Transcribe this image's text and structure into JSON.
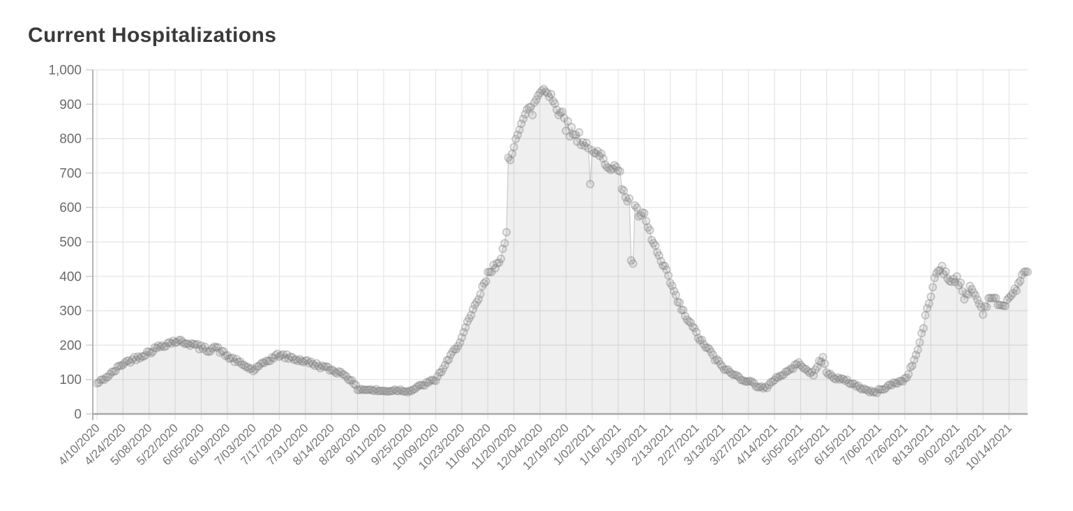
{
  "chart_data": {
    "type": "area",
    "title": "Current Hospitalizations",
    "xlabel": "",
    "ylabel": "",
    "ylim": [
      0,
      1000
    ],
    "grid": true,
    "legend": "none",
    "series_name": "Current Hospitalizations",
    "y_tick_labels": [
      "0",
      "100",
      "200",
      "300",
      "400",
      "500",
      "600",
      "700",
      "800",
      "900",
      "1,000"
    ],
    "y_tick_values": [
      0,
      100,
      200,
      300,
      400,
      500,
      600,
      700,
      800,
      900,
      1000
    ],
    "x_tick_labels": [
      "4/10/2020",
      "4/24/2020",
      "5/08/2020",
      "5/22/2020",
      "6/05/2020",
      "6/19/2020",
      "7/03/2020",
      "7/17/2020",
      "7/31/2020",
      "8/14/2020",
      "8/28/2020",
      "9/11/2020",
      "9/25/2020",
      "10/09/2020",
      "10/23/2020",
      "11/06/2020",
      "11/20/2020",
      "12/04/2020",
      "12/19/2020",
      "1/02/2021",
      "1/16/2021",
      "1/30/2021",
      "2/13/2021",
      "2/27/2021",
      "3/13/2021",
      "3/27/2021",
      "4/14/2021",
      "5/05/2021",
      "5/25/2021",
      "6/15/2021",
      "7/06/2021",
      "7/26/2021",
      "8/13/2021",
      "9/02/2021",
      "9/23/2021",
      "10/14/2021"
    ],
    "points_per_label": 14,
    "total_points": 501,
    "anchors": [
      [
        0,
        88
      ],
      [
        7,
        114
      ],
      [
        14,
        147
      ],
      [
        21,
        163
      ],
      [
        28,
        180
      ],
      [
        35,
        200
      ],
      [
        42,
        212
      ],
      [
        49,
        207
      ],
      [
        56,
        192
      ],
      [
        60,
        186
      ],
      [
        63,
        196
      ],
      [
        70,
        168
      ],
      [
        77,
        147
      ],
      [
        84,
        127
      ],
      [
        88,
        140
      ],
      [
        91,
        154
      ],
      [
        98,
        172
      ],
      [
        105,
        162
      ],
      [
        112,
        153
      ],
      [
        119,
        141
      ],
      [
        126,
        128
      ],
      [
        133,
        116
      ],
      [
        136,
        100
      ],
      [
        140,
        73
      ],
      [
        147,
        70
      ],
      [
        154,
        66
      ],
      [
        161,
        70
      ],
      [
        168,
        67
      ],
      [
        175,
        84
      ],
      [
        182,
        100
      ],
      [
        189,
        158
      ],
      [
        196,
        222
      ],
      [
        203,
        310
      ],
      [
        210,
        402
      ],
      [
        214,
        432
      ],
      [
        217,
        462
      ],
      [
        219,
        490
      ],
      [
        220,
        515
      ],
      [
        221,
        730
      ],
      [
        223,
        748
      ],
      [
        224,
        790
      ],
      [
        227,
        845
      ],
      [
        231,
        875
      ],
      [
        234,
        882
      ],
      [
        237,
        928
      ],
      [
        240,
        948
      ],
      [
        243,
        938
      ],
      [
        245,
        920
      ],
      [
        248,
        862
      ],
      [
        250,
        895
      ],
      [
        251,
        882
      ],
      [
        252,
        838
      ],
      [
        255,
        818
      ],
      [
        259,
        805
      ],
      [
        262,
        790
      ],
      [
        266,
        748
      ],
      [
        269,
        752
      ],
      [
        273,
        737
      ],
      [
        277,
        722
      ],
      [
        280,
        705
      ],
      [
        284,
        635
      ],
      [
        287,
        605
      ],
      [
        290,
        585
      ],
      [
        294,
        570
      ],
      [
        297,
        525
      ],
      [
        301,
        468
      ],
      [
        304,
        430
      ],
      [
        308,
        385
      ],
      [
        311,
        338
      ],
      [
        315,
        295
      ],
      [
        318,
        268
      ],
      [
        322,
        235
      ],
      [
        325,
        208
      ],
      [
        329,
        185
      ],
      [
        332,
        160
      ],
      [
        336,
        138
      ],
      [
        340,
        120
      ],
      [
        343,
        112
      ],
      [
        347,
        101
      ],
      [
        350,
        96
      ],
      [
        354,
        84
      ],
      [
        357,
        78
      ],
      [
        360,
        74
      ],
      [
        364,
        103
      ],
      [
        368,
        114
      ],
      [
        371,
        124
      ],
      [
        375,
        140
      ],
      [
        378,
        147
      ],
      [
        382,
        127
      ],
      [
        385,
        111
      ],
      [
        388,
        152
      ],
      [
        390,
        162
      ],
      [
        392,
        122
      ],
      [
        395,
        109
      ],
      [
        399,
        101
      ],
      [
        403,
        95
      ],
      [
        406,
        88
      ],
      [
        410,
        77
      ],
      [
        413,
        70
      ],
      [
        416,
        64
      ],
      [
        418,
        62
      ],
      [
        420,
        68
      ],
      [
        424,
        78
      ],
      [
        427,
        86
      ],
      [
        430,
        92
      ],
      [
        434,
        100
      ],
      [
        437,
        130
      ],
      [
        441,
        185
      ],
      [
        444,
        255
      ],
      [
        448,
        347
      ],
      [
        451,
        410
      ],
      [
        454,
        430
      ],
      [
        456,
        405
      ],
      [
        458,
        388
      ],
      [
        462,
        396
      ],
      [
        464,
        372
      ],
      [
        466,
        330
      ],
      [
        469,
        370
      ],
      [
        472,
        344
      ],
      [
        476,
        298
      ],
      [
        480,
        344
      ],
      [
        483,
        328
      ],
      [
        486,
        308
      ],
      [
        490,
        338
      ],
      [
        493,
        358
      ],
      [
        496,
        384
      ],
      [
        500,
        425
      ]
    ],
    "outliers": [
      [
        265,
        668
      ],
      [
        287,
        446
      ],
      [
        288,
        437
      ]
    ],
    "noise_seed": 42,
    "noise_base": 3,
    "noise_scale": 0.022
  },
  "style": {
    "background": "#ffffff",
    "title_color": "#3a3a3a",
    "y_label_color": "#6a6a6a",
    "x_label_color": "#757575",
    "grid_color": "#e4e4e4",
    "tick_color": "#cfcfcf",
    "y_axis_color": "#b4b4b4",
    "x_axis_color": "#a8a8a8",
    "area_fill": "rgba(140,140,140,0.14)",
    "line_color": "rgba(170,170,170,0.55)",
    "point_fill": "rgba(150,150,150,0.18)",
    "point_stroke": "rgba(120,120,120,0.38)"
  }
}
